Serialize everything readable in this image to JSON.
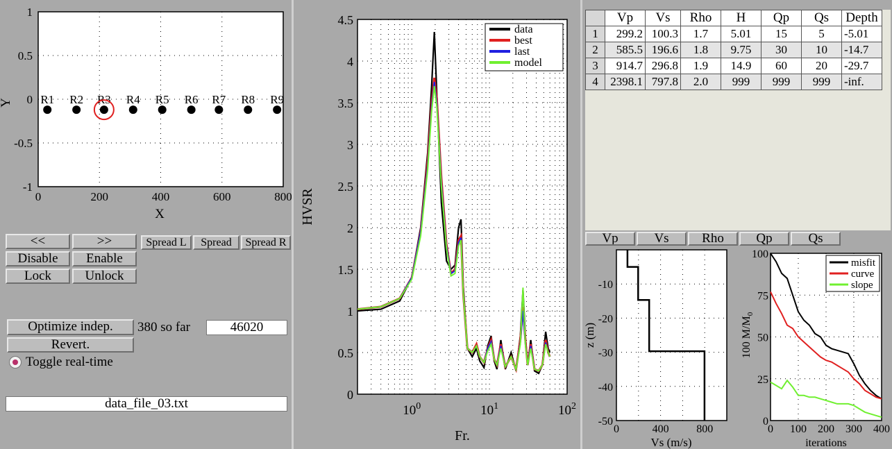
{
  "receiver_plot": {
    "ylabel": "Y",
    "xlabel": "X",
    "yticks": [
      "1",
      "0.5",
      "0",
      "-0.5",
      "-1"
    ],
    "xticks": [
      "0",
      "200",
      "400",
      "600",
      "800"
    ],
    "receivers": [
      "R1",
      "R2",
      "R3",
      "R4",
      "R5",
      "R6",
      "R7",
      "R8",
      "R9"
    ],
    "selected": "R3"
  },
  "controls": {
    "prev_label": "<<",
    "next_label": ">>",
    "spread_l_label": "Spread L",
    "spread_label": "Spread",
    "spread_r_label": "Spread R",
    "disable_label": "Disable",
    "enable_label": "Enable",
    "lock_label": "Lock",
    "unlock_label": "Unlock",
    "optimize_label": "Optimize indep.",
    "so_far_text": "380 so far",
    "iterations_value": "46020",
    "revert_label": "Revert.",
    "toggle_label": "Toggle real-time",
    "filename": "data_file_03.txt"
  },
  "hvsr_plot": {
    "ylabel": "HVSR",
    "xlabel": "Fr.",
    "yticks": [
      "4.5",
      "4",
      "3.5",
      "3",
      "2.5",
      "2",
      "1.5",
      "1",
      "0.5",
      "0"
    ],
    "xtick_base": "10",
    "xtick_exps": [
      "0",
      "1",
      "2"
    ],
    "legend": [
      "data",
      "best",
      "last",
      "model"
    ],
    "colors": {
      "data": "#000000",
      "best": "#e02020",
      "last": "#2020e0",
      "model": "#70f030"
    }
  },
  "param_table": {
    "headers": [
      "Vp",
      "Vs",
      "Rho",
      "H",
      "Qp",
      "Qs",
      "Depth"
    ],
    "rows": [
      {
        "idx": "1",
        "vp": "299.2",
        "vs": "100.3",
        "rho": "1.7",
        "h": "5.01",
        "qp": "15",
        "qs": "5",
        "depth": "-5.01"
      },
      {
        "idx": "2",
        "vp": "585.5",
        "vs": "196.6",
        "rho": "1.8",
        "h": "9.75",
        "qp": "30",
        "qs": "10",
        "depth": "-14.7"
      },
      {
        "idx": "3",
        "vp": "914.7",
        "vs": "296.8",
        "rho": "1.9",
        "h": "14.9",
        "qp": "60",
        "qs": "20",
        "depth": "-29.7"
      },
      {
        "idx": "4",
        "vp": "2398.1",
        "vs": "797.8",
        "rho": "2.0",
        "h": "999",
        "qp": "999",
        "qs": "999",
        "depth": "-inf."
      }
    ]
  },
  "param_buttons": [
    "Vp",
    "Vs",
    "Rho",
    "Qp",
    "Qs"
  ],
  "chart_data": [
    {
      "type": "scatter",
      "xlabel": "X",
      "ylabel": "Y",
      "xlim": [
        0,
        800
      ],
      "ylim": [
        -1,
        1
      ],
      "x": [
        30,
        125,
        215,
        310,
        405,
        500,
        590,
        685,
        780
      ],
      "y": [
        -0.12,
        -0.12,
        -0.12,
        -0.12,
        -0.12,
        -0.12,
        -0.12,
        -0.12,
        -0.12
      ],
      "labels": [
        "R1",
        "R2",
        "R3",
        "R4",
        "R5",
        "R6",
        "R7",
        "R8",
        "R9"
      ],
      "grid": true
    },
    {
      "type": "line",
      "xlabel": "Fr.",
      "ylabel": "HVSR",
      "xscale": "log",
      "xlim": [
        0.2,
        100
      ],
      "ylim": [
        0,
        4.5
      ],
      "legend_position": "top-right",
      "grid": true,
      "series": [
        {
          "name": "data",
          "x": [
            0.2,
            0.4,
            0.7,
            1.0,
            1.3,
            1.6,
            1.8,
            1.95,
            2.1,
            2.4,
            2.8,
            3.2,
            3.6,
            4.0,
            4.3,
            4.6,
            5.2,
            6.0,
            6.8,
            7.5,
            8.5,
            9.5,
            10.5,
            11.5,
            12.5,
            14,
            16,
            19,
            22,
            25,
            27,
            29,
            31,
            34,
            38,
            43,
            48,
            53,
            57,
            60
          ],
          "y": [
            1.0,
            1.02,
            1.12,
            1.4,
            2.0,
            2.9,
            3.7,
            4.35,
            3.6,
            2.3,
            1.6,
            1.5,
            1.55,
            2.0,
            2.1,
            1.3,
            0.55,
            0.45,
            0.55,
            0.4,
            0.32,
            0.58,
            0.7,
            0.4,
            0.3,
            0.65,
            0.3,
            0.5,
            0.28,
            0.7,
            1.25,
            0.7,
            0.35,
            0.65,
            0.28,
            0.25,
            0.35,
            0.75,
            0.55,
            0.5
          ]
        },
        {
          "name": "best",
          "x": [
            0.2,
            0.4,
            0.7,
            1.0,
            1.3,
            1.6,
            1.8,
            1.95,
            2.1,
            2.4,
            2.8,
            3.2,
            3.6,
            4.0,
            4.3,
            4.6,
            5.2,
            6.0,
            6.8,
            7.5,
            8.5,
            9.5,
            10.5,
            11.5,
            12.5,
            14,
            16,
            19,
            22,
            25,
            27,
            29,
            31,
            34,
            38,
            43,
            48,
            53,
            57,
            60
          ],
          "y": [
            1.02,
            1.05,
            1.15,
            1.4,
            1.95,
            2.8,
            3.5,
            3.8,
            3.55,
            2.6,
            1.8,
            1.45,
            1.5,
            1.85,
            1.9,
            1.2,
            0.55,
            0.5,
            0.6,
            0.45,
            0.38,
            0.55,
            0.65,
            0.42,
            0.35,
            0.6,
            0.33,
            0.45,
            0.3,
            0.65,
            1.05,
            0.65,
            0.35,
            0.6,
            0.3,
            0.28,
            0.35,
            0.65,
            0.5,
            0.45
          ]
        },
        {
          "name": "last",
          "x": [
            0.2,
            0.4,
            0.7,
            1.0,
            1.3,
            1.6,
            1.8,
            1.95,
            2.1,
            2.4,
            2.8,
            3.2,
            3.6,
            4.0,
            4.3,
            4.6,
            5.2,
            6.0,
            6.8,
            7.5,
            8.5,
            9.5,
            10.5,
            11.5,
            12.5,
            14,
            16,
            19,
            22,
            25,
            27,
            29,
            31,
            34,
            38,
            43,
            48,
            53,
            57,
            60
          ],
          "y": [
            1.02,
            1.05,
            1.15,
            1.4,
            1.95,
            2.75,
            3.45,
            3.75,
            3.5,
            2.55,
            1.78,
            1.45,
            1.48,
            1.82,
            1.88,
            1.2,
            0.55,
            0.5,
            0.58,
            0.45,
            0.38,
            0.55,
            0.63,
            0.42,
            0.35,
            0.58,
            0.33,
            0.45,
            0.3,
            0.62,
            1.0,
            0.62,
            0.35,
            0.58,
            0.3,
            0.28,
            0.35,
            0.62,
            0.5,
            0.45
          ]
        },
        {
          "name": "model",
          "x": [
            0.2,
            0.4,
            0.7,
            1.0,
            1.3,
            1.6,
            1.8,
            1.95,
            2.1,
            2.4,
            2.8,
            3.2,
            3.6,
            4.0,
            4.3,
            4.6,
            5.2,
            6.0,
            6.8,
            7.5,
            8.5,
            9.5,
            10.5,
            11.5,
            12.5,
            14,
            16,
            19,
            22,
            25,
            27,
            29,
            31,
            34,
            38,
            43,
            48,
            53,
            57,
            60
          ],
          "y": [
            1.02,
            1.05,
            1.15,
            1.38,
            1.9,
            2.7,
            3.4,
            3.7,
            3.45,
            2.5,
            1.75,
            1.42,
            1.45,
            1.78,
            1.85,
            1.2,
            0.55,
            0.5,
            0.58,
            0.45,
            0.38,
            0.52,
            0.6,
            0.42,
            0.35,
            0.55,
            0.33,
            0.45,
            0.3,
            0.6,
            1.28,
            0.6,
            0.35,
            0.55,
            0.3,
            0.28,
            0.35,
            0.6,
            0.5,
            0.45
          ]
        }
      ]
    },
    {
      "type": "line",
      "xlabel": "Vs (m/s)",
      "ylabel": "z (m)",
      "xlim": [
        0,
        1000
      ],
      "ylim": [
        -50,
        0
      ],
      "xticks": [
        "0",
        "400",
        "800"
      ],
      "yticks": [
        "-10",
        "-20",
        "-30",
        "-40",
        "-50"
      ],
      "grid": true,
      "series": [
        {
          "x": [
            100.3,
            100.3,
            196.6,
            196.6,
            296.8,
            296.8,
            797.8,
            797.8
          ],
          "y": [
            0,
            -5.01,
            -5.01,
            -14.7,
            -14.7,
            -29.7,
            -29.7,
            -50
          ]
        }
      ]
    },
    {
      "type": "line",
      "xlabel": "iterations",
      "ylabel": "100 M/M0",
      "xlim": [
        0,
        400
      ],
      "ylim": [
        0,
        100
      ],
      "xticks": [
        "0",
        "100",
        "200",
        "300",
        "400"
      ],
      "yticks": [
        "0",
        "25",
        "50",
        "75",
        "100"
      ],
      "legend_position": "top-right",
      "grid": true,
      "series": [
        {
          "name": "misfit",
          "color": "#000000",
          "x": [
            0,
            20,
            40,
            60,
            80,
            100,
            120,
            140,
            160,
            180,
            200,
            220,
            240,
            260,
            280,
            300,
            320,
            340,
            360,
            380,
            400
          ],
          "y": [
            100,
            95,
            88,
            85,
            75,
            65,
            60,
            57,
            52,
            50,
            45,
            43,
            42,
            41,
            40,
            34,
            27,
            22,
            18,
            15,
            13
          ]
        },
        {
          "name": "curve",
          "color": "#e02020",
          "x": [
            0,
            20,
            40,
            60,
            80,
            100,
            120,
            140,
            160,
            180,
            200,
            220,
            240,
            260,
            280,
            300,
            320,
            340,
            360,
            380,
            400
          ],
          "y": [
            77,
            70,
            64,
            57,
            55,
            50,
            47,
            44,
            41,
            38,
            36,
            35,
            33,
            31,
            29,
            25,
            22,
            18,
            16,
            14,
            13
          ]
        },
        {
          "name": "slope",
          "color": "#70f030",
          "x": [
            0,
            20,
            40,
            60,
            80,
            100,
            120,
            140,
            160,
            180,
            200,
            220,
            240,
            260,
            280,
            300,
            320,
            340,
            360,
            380,
            400
          ],
          "y": [
            23,
            21,
            19,
            24,
            20,
            15,
            15,
            14,
            14,
            13,
            12,
            11,
            10,
            10,
            10,
            9,
            7,
            5,
            4,
            3,
            2
          ]
        }
      ]
    }
  ]
}
